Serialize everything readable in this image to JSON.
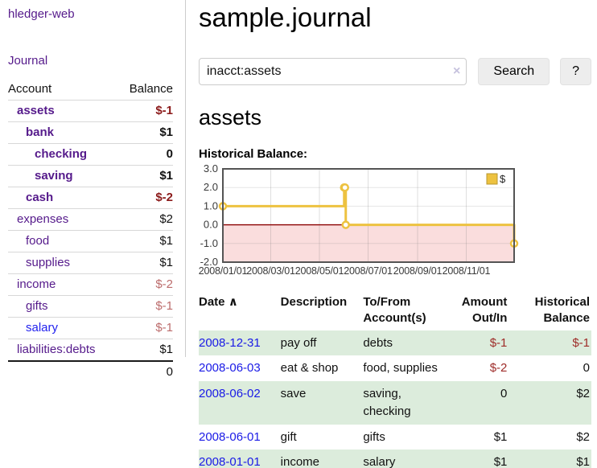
{
  "sidebar": {
    "brand": "hledger-web",
    "nav": {
      "journal": "Journal"
    },
    "table": {
      "account_header": "Account",
      "balance_header": "Balance",
      "accounts": [
        {
          "name": "assets",
          "balance": "$-1",
          "depth": 1,
          "bold": true
        },
        {
          "name": "bank",
          "balance": "$1",
          "depth": 2,
          "bold": true
        },
        {
          "name": "checking",
          "balance": "0",
          "depth": 3,
          "bold": true
        },
        {
          "name": "saving",
          "balance": "$1",
          "depth": 3,
          "bold": true
        },
        {
          "name": "cash",
          "balance": "$-2",
          "depth": 2,
          "bold": true
        },
        {
          "name": "expenses",
          "balance": "$2",
          "depth": 1,
          "bold": false
        },
        {
          "name": "food",
          "balance": "$1",
          "depth": 2,
          "bold": false
        },
        {
          "name": "supplies",
          "balance": "$1",
          "depth": 2,
          "bold": false
        },
        {
          "name": "income",
          "balance": "$-2",
          "depth": 1,
          "bold": false
        },
        {
          "name": "gifts",
          "balance": "$-1",
          "depth": 2,
          "bold": false
        },
        {
          "name": "salary",
          "balance": "$-1",
          "depth": 2,
          "bold": false
        },
        {
          "name": "liabilities:debts",
          "balance": "$1",
          "depth": 1,
          "bold": false
        }
      ],
      "total": "0"
    }
  },
  "main": {
    "title": "sample.journal",
    "search": {
      "value": "inacct:assets",
      "clear_icon": "×",
      "button_label": "Search",
      "help_label": "?"
    },
    "account_title": "assets",
    "chart_label": "Historical Balance:"
  },
  "chart_data": {
    "type": "line",
    "step": true,
    "title": "Historical Balance",
    "series": [
      {
        "name": "$",
        "color": "#edc240",
        "points": [
          [
            "2008-01-01",
            1
          ],
          [
            "2008-06-01",
            2
          ],
          [
            "2008-06-02",
            2
          ],
          [
            "2008-06-03",
            0
          ],
          [
            "2008-12-31",
            -1
          ]
        ]
      }
    ],
    "ylim": [
      -2,
      3
    ],
    "y_ticks": [
      3,
      2,
      1,
      0,
      -1,
      -2
    ],
    "x_range": [
      "2008-01-01",
      "2008-12-31"
    ],
    "x_ticks": [
      {
        "pos": "2008-01-01",
        "label": "2008/01/01"
      },
      {
        "pos": "2008-03-01",
        "label": "2008/03/01"
      },
      {
        "pos": "2008-05-01",
        "label": "2008/05/01"
      },
      {
        "pos": "2008-07-01",
        "label": "2008/07/01"
      },
      {
        "pos": "2008-09-01",
        "label": "2008/09/01"
      },
      {
        "pos": "2008-11-01",
        "label": "2008/11/01"
      }
    ],
    "legend_position": "top-right",
    "grid": true,
    "negative_fill": "#fadddd",
    "zero_line_color": "#8b0000"
  },
  "register": {
    "columns": {
      "date": "Date",
      "date_sort_icon": "∧",
      "description": "Description",
      "accounts": "To/From Account(s)",
      "amount": "Amount Out/In",
      "balance": "Historical Balance"
    },
    "rows": [
      {
        "date": "2008-12-31",
        "description": "pay off",
        "accounts": "debts",
        "amount": "$-1",
        "balance": "$-1"
      },
      {
        "date": "2008-06-03",
        "description": "eat & shop",
        "accounts": "food, supplies",
        "amount": "$-2",
        "balance": "0"
      },
      {
        "date": "2008-06-02",
        "description": "save",
        "accounts": "saving, checking",
        "amount": "0",
        "balance": "$2"
      },
      {
        "date": "2008-06-01",
        "description": "gift",
        "accounts": "gifts",
        "amount": "$1",
        "balance": "$2"
      },
      {
        "date": "2008-01-01",
        "description": "income",
        "accounts": "salary",
        "amount": "$1",
        "balance": "$1"
      }
    ]
  },
  "colors": {
    "link_purple": "#551a8b",
    "link_blue": "#2222ee",
    "date_link_blue": "#1a1ae6",
    "negative_strong": "#8b1a1a",
    "negative_soft": "#bc6c6c",
    "negative_table": "#9e2b28",
    "row_stripe_green": "#dcecdc",
    "series_gold": "#edc240"
  }
}
